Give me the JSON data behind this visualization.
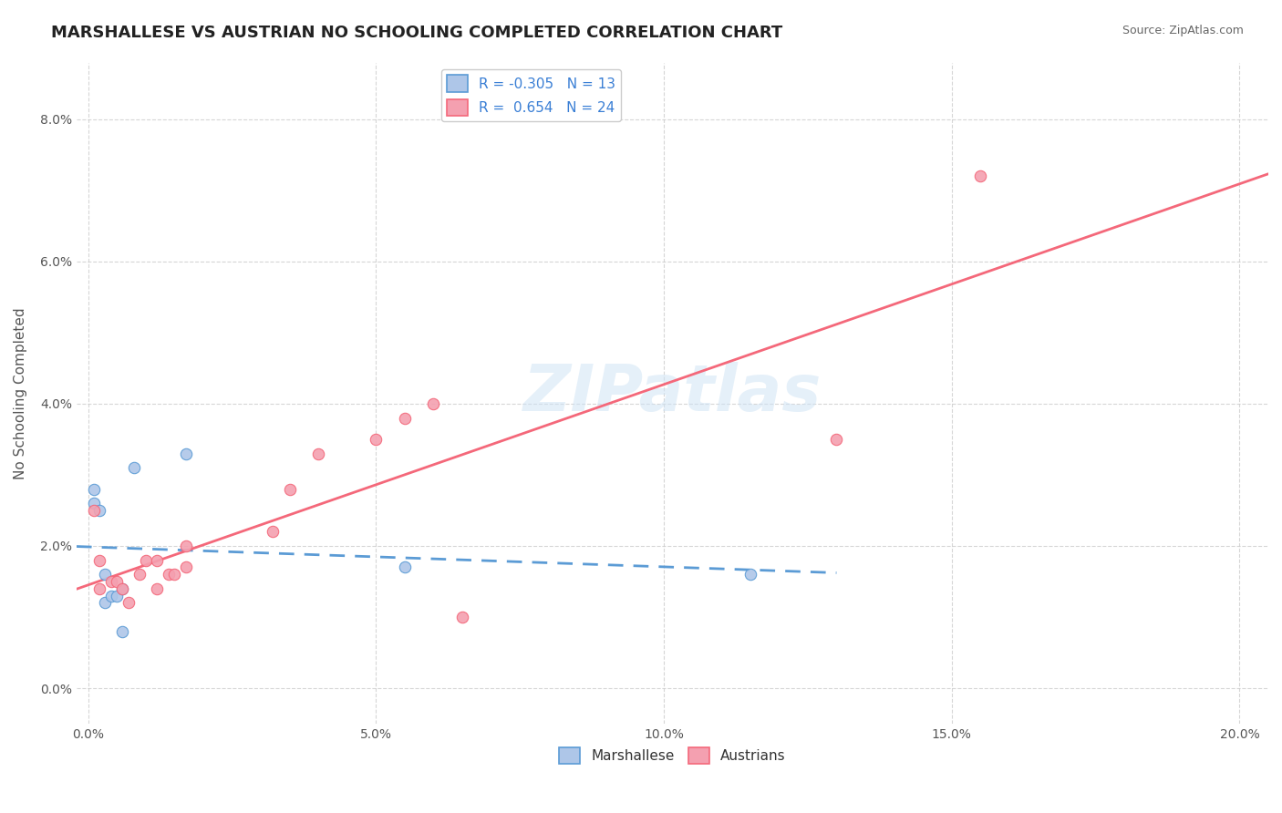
{
  "title": "MARSHALLESE VS AUSTRIAN NO SCHOOLING COMPLETED CORRELATION CHART",
  "source_text": "Source: ZipAtlas.com",
  "ylabel": "No Schooling Completed",
  "xlabel_ticks": [
    "0.0%",
    "5.0%",
    "10.0%",
    "15.0%",
    "20.0%"
  ],
  "xlabel_vals": [
    0.0,
    0.05,
    0.1,
    0.15,
    0.2
  ],
  "ylabel_ticks": [
    "0.0%",
    "2.0%",
    "4.0%",
    "6.0%",
    "8.0%"
  ],
  "ylabel_vals": [
    0.0,
    0.02,
    0.04,
    0.06,
    0.08
  ],
  "xlim": [
    -0.002,
    0.205
  ],
  "ylim": [
    -0.005,
    0.088
  ],
  "marshallese_x": [
    0.001,
    0.001,
    0.002,
    0.003,
    0.003,
    0.004,
    0.005,
    0.006,
    0.006,
    0.008,
    0.017,
    0.055,
    0.115
  ],
  "marshallese_y": [
    0.028,
    0.026,
    0.025,
    0.012,
    0.016,
    0.013,
    0.013,
    0.014,
    0.008,
    0.031,
    0.033,
    0.017,
    0.016
  ],
  "austrians_x": [
    0.001,
    0.002,
    0.002,
    0.004,
    0.005,
    0.006,
    0.007,
    0.009,
    0.01,
    0.012,
    0.012,
    0.014,
    0.015,
    0.017,
    0.017,
    0.032,
    0.035,
    0.04,
    0.05,
    0.055,
    0.06,
    0.065,
    0.13,
    0.155
  ],
  "austrians_y": [
    0.025,
    0.018,
    0.014,
    0.015,
    0.015,
    0.014,
    0.012,
    0.016,
    0.018,
    0.014,
    0.018,
    0.016,
    0.016,
    0.017,
    0.02,
    0.022,
    0.028,
    0.033,
    0.035,
    0.038,
    0.04,
    0.01,
    0.035,
    0.072
  ],
  "marshallese_color": "#aec6e8",
  "austrians_color": "#f4a0b0",
  "marshallese_line_color": "#5b9bd5",
  "austrians_line_color": "#f4687a",
  "marshallese_R": -0.305,
  "marshallese_N": 13,
  "austrians_R": 0.654,
  "austrians_N": 24,
  "legend_label_1": "Marshallese",
  "legend_label_2": "Austrians",
  "watermark": "ZIPatlas",
  "background_color": "#ffffff",
  "grid_color": "#cccccc",
  "title_fontsize": 13,
  "axis_label_fontsize": 11,
  "tick_fontsize": 10,
  "legend_fontsize": 11
}
